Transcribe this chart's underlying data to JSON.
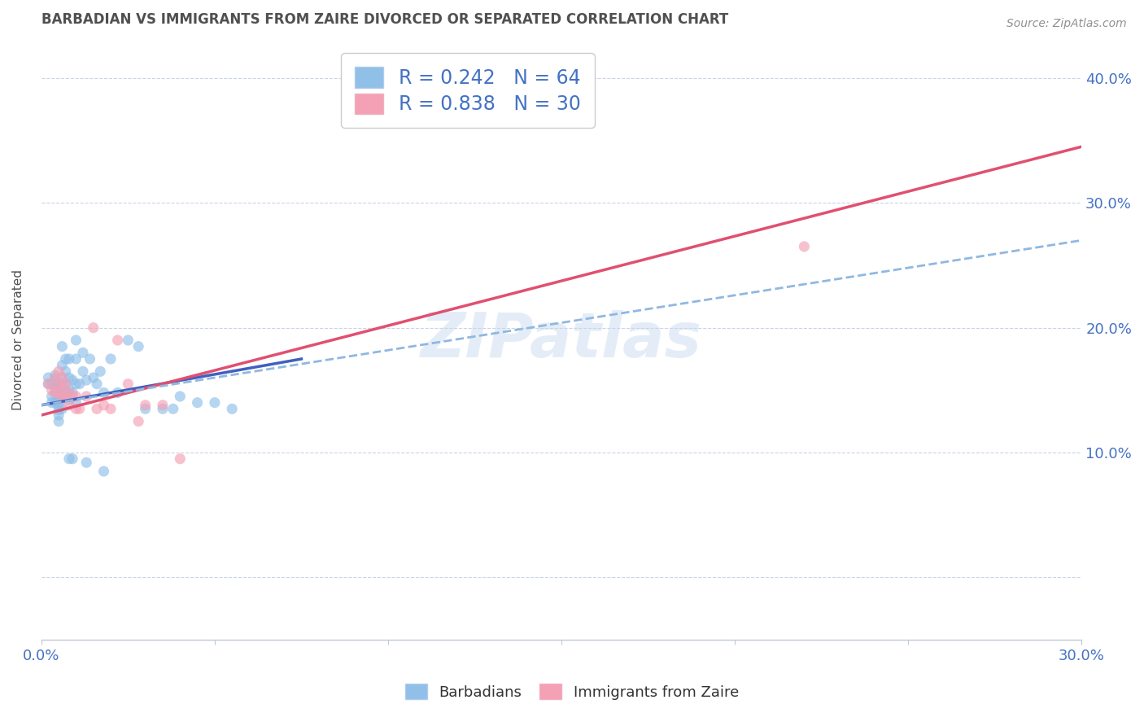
{
  "title": "BARBADIAN VS IMMIGRANTS FROM ZAIRE DIVORCED OR SEPARATED CORRELATION CHART",
  "source": "Source: ZipAtlas.com",
  "ylabel": "Divorced or Separated",
  "watermark": "ZIPatlas",
  "xlim": [
    0.0,
    0.3
  ],
  "ylim": [
    -0.05,
    0.43
  ],
  "xticks": [
    0.0,
    0.05,
    0.1,
    0.15,
    0.2,
    0.25,
    0.3
  ],
  "xtick_labels": [
    "0.0%",
    "",
    "",
    "",
    "",
    "",
    "30.0%"
  ],
  "yticks": [
    0.0,
    0.1,
    0.2,
    0.3,
    0.4
  ],
  "ytick_labels": [
    "",
    "10.0%",
    "20.0%",
    "30.0%",
    "40.0%"
  ],
  "blue_color": "#90BFE8",
  "pink_color": "#F4A0B5",
  "blue_line_color": "#4060C0",
  "pink_line_color": "#E05070",
  "dashed_line_color": "#90B8E0",
  "legend_text_color": "#4472C4",
  "title_color": "#505050",
  "source_color": "#909090",
  "R_blue": 0.242,
  "N_blue": 64,
  "R_pink": 0.838,
  "N_pink": 30,
  "blue_scatter_x": [
    0.002,
    0.002,
    0.003,
    0.003,
    0.003,
    0.004,
    0.004,
    0.004,
    0.004,
    0.004,
    0.005,
    0.005,
    0.005,
    0.005,
    0.005,
    0.005,
    0.005,
    0.005,
    0.005,
    0.005,
    0.006,
    0.006,
    0.006,
    0.006,
    0.006,
    0.006,
    0.007,
    0.007,
    0.007,
    0.007,
    0.008,
    0.008,
    0.008,
    0.008,
    0.009,
    0.009,
    0.01,
    0.01,
    0.01,
    0.01,
    0.011,
    0.012,
    0.012,
    0.013,
    0.014,
    0.015,
    0.016,
    0.017,
    0.018,
    0.02,
    0.022,
    0.025,
    0.028,
    0.03,
    0.035,
    0.038,
    0.04,
    0.045,
    0.05,
    0.055,
    0.008,
    0.009,
    0.013,
    0.018
  ],
  "blue_scatter_y": [
    0.155,
    0.16,
    0.155,
    0.145,
    0.14,
    0.162,
    0.158,
    0.152,
    0.148,
    0.14,
    0.155,
    0.155,
    0.15,
    0.147,
    0.143,
    0.14,
    0.137,
    0.134,
    0.13,
    0.125,
    0.185,
    0.17,
    0.16,
    0.155,
    0.145,
    0.135,
    0.175,
    0.165,
    0.155,
    0.148,
    0.175,
    0.16,
    0.15,
    0.142,
    0.158,
    0.148,
    0.19,
    0.175,
    0.155,
    0.14,
    0.155,
    0.18,
    0.165,
    0.158,
    0.175,
    0.16,
    0.155,
    0.165,
    0.148,
    0.175,
    0.148,
    0.19,
    0.185,
    0.135,
    0.135,
    0.135,
    0.145,
    0.14,
    0.14,
    0.135,
    0.095,
    0.095,
    0.092,
    0.085
  ],
  "pink_scatter_x": [
    0.002,
    0.003,
    0.004,
    0.004,
    0.005,
    0.005,
    0.005,
    0.006,
    0.006,
    0.006,
    0.007,
    0.007,
    0.008,
    0.008,
    0.009,
    0.01,
    0.01,
    0.011,
    0.013,
    0.015,
    0.016,
    0.018,
    0.02,
    0.022,
    0.025,
    0.028,
    0.03,
    0.035,
    0.04,
    0.22
  ],
  "pink_scatter_y": [
    0.155,
    0.15,
    0.16,
    0.148,
    0.165,
    0.155,
    0.148,
    0.16,
    0.152,
    0.143,
    0.155,
    0.145,
    0.148,
    0.138,
    0.145,
    0.145,
    0.135,
    0.135,
    0.145,
    0.2,
    0.135,
    0.138,
    0.135,
    0.19,
    0.155,
    0.125,
    0.138,
    0.138,
    0.095,
    0.265
  ],
  "blue_trendline_x": [
    0.0,
    0.075
  ],
  "blue_trendline_y": [
    0.138,
    0.175
  ],
  "pink_trendline_x": [
    0.0,
    0.3
  ],
  "pink_trendline_y": [
    0.13,
    0.345
  ],
  "dashed_trendline_x": [
    0.0,
    0.3
  ],
  "dashed_trendline_y": [
    0.138,
    0.27
  ]
}
